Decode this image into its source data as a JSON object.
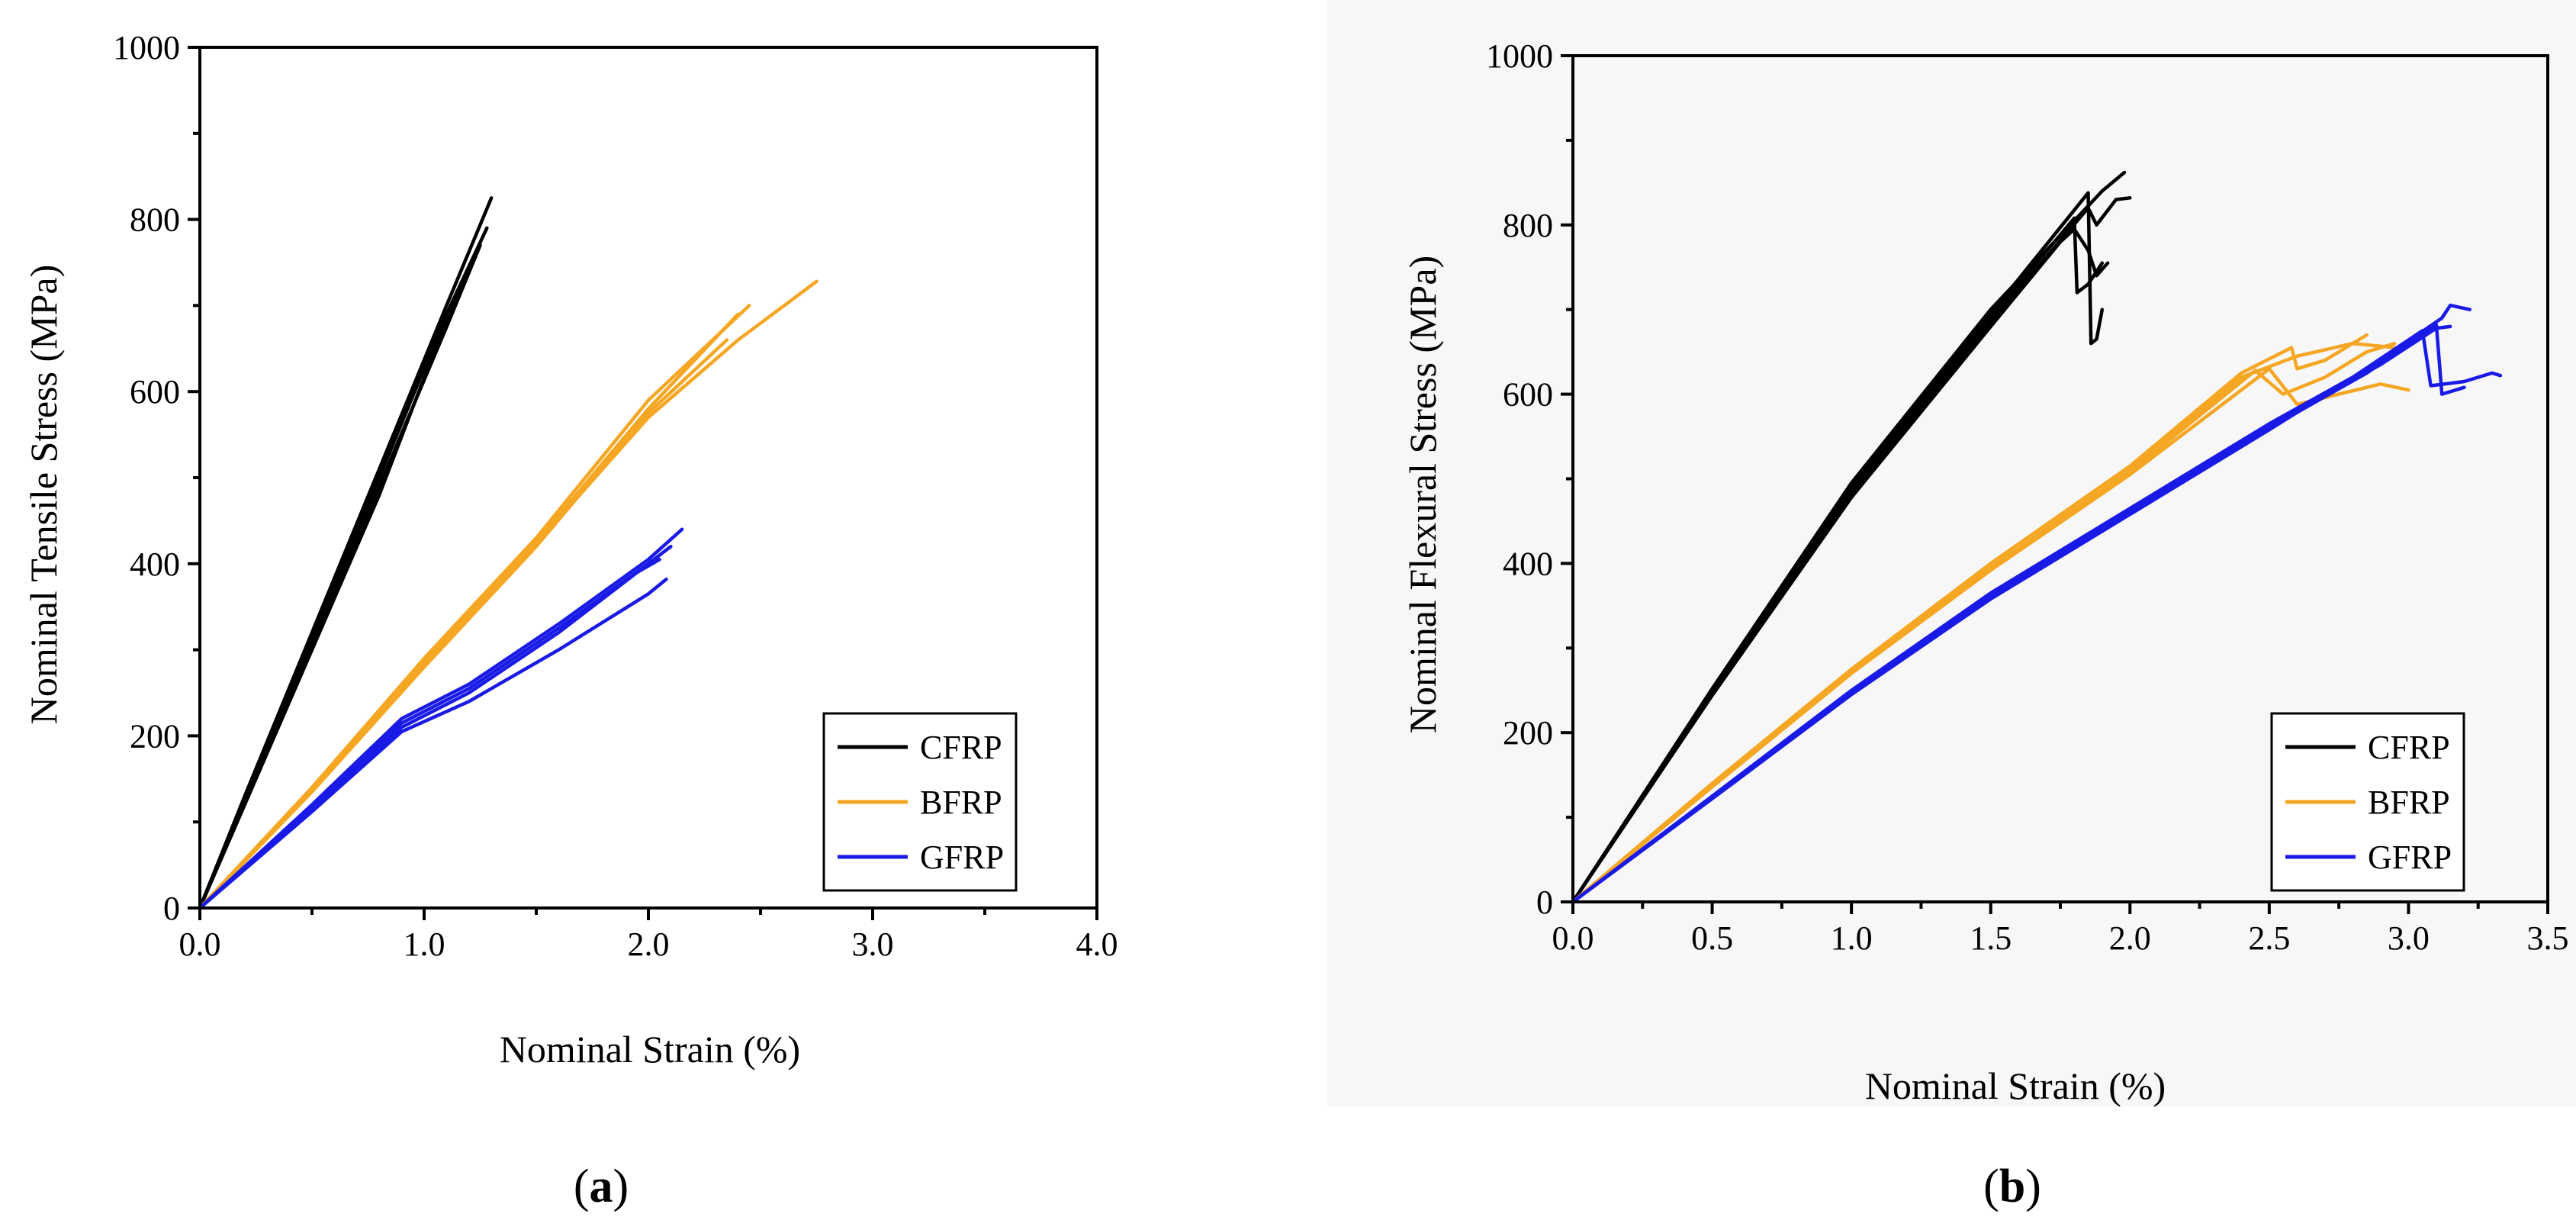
{
  "chart_data": [
    {
      "type": "line",
      "panel": "a",
      "caption": {
        "open": "(",
        "letter": "a",
        "close": ")"
      },
      "xlabel": "Nominal Strain (%)",
      "ylabel": "Nominal Tensile Stress (MPa)",
      "xlim": [
        0,
        4.0
      ],
      "ylim": [
        0,
        1000
      ],
      "xticks": [
        0,
        1.0,
        2.0,
        3.0,
        4.0
      ],
      "xticklabels": [
        "0.0",
        "1.0",
        "2.0",
        "3.0",
        "4.0"
      ],
      "yticks": [
        0,
        200,
        400,
        600,
        800,
        1000
      ],
      "yticklabels": [
        "0",
        "200",
        "400",
        "600",
        "800",
        "1000"
      ],
      "legend_position": "lower-right",
      "series": [
        {
          "name": "CFRP",
          "color": "#000000",
          "curves": [
            [
              [
                0,
                0
              ],
              [
                0.2,
                130
              ],
              [
                0.5,
                320
              ],
              [
                0.8,
                510
              ],
              [
                1.1,
                700
              ],
              [
                1.3,
                825
              ]
            ],
            [
              [
                0,
                0
              ],
              [
                0.2,
                125
              ],
              [
                0.5,
                315
              ],
              [
                0.8,
                500
              ],
              [
                1.1,
                690
              ],
              [
                1.28,
                790
              ]
            ],
            [
              [
                0,
                0
              ],
              [
                0.2,
                122
              ],
              [
                0.5,
                308
              ],
              [
                0.8,
                490
              ],
              [
                1.1,
                675
              ],
              [
                1.25,
                770
              ]
            ],
            [
              [
                0,
                0
              ],
              [
                0.2,
                120
              ],
              [
                0.5,
                300
              ],
              [
                0.8,
                480
              ],
              [
                1.05,
                650
              ],
              [
                1.22,
                752
              ]
            ]
          ]
        },
        {
          "name": "BFRP",
          "color": "#F5A623",
          "curves": [
            [
              [
                0,
                0
              ],
              [
                0.5,
                140
              ],
              [
                1.0,
                290
              ],
              [
                1.5,
                430
              ],
              [
                2.0,
                590
              ],
              [
                2.45,
                700
              ]
            ],
            [
              [
                0,
                0
              ],
              [
                0.5,
                138
              ],
              [
                1.0,
                285
              ],
              [
                1.5,
                425
              ],
              [
                2.0,
                580
              ],
              [
                2.4,
                690
              ]
            ],
            [
              [
                0,
                0
              ],
              [
                0.5,
                135
              ],
              [
                1.0,
                280
              ],
              [
                1.5,
                420
              ],
              [
                2.0,
                575
              ],
              [
                2.35,
                660
              ]
            ],
            [
              [
                0,
                0
              ],
              [
                0.5,
                137
              ],
              [
                1.0,
                283
              ],
              [
                1.5,
                423
              ],
              [
                2.0,
                570
              ],
              [
                2.4,
                660
              ],
              [
                2.75,
                728
              ]
            ]
          ]
        },
        {
          "name": "GFRP",
          "color": "#1A1AE6",
          "curves": [
            [
              [
                0,
                0
              ],
              [
                0.5,
                120
              ],
              [
                0.9,
                220
              ],
              [
                1.2,
                260
              ],
              [
                1.6,
                330
              ],
              [
                2.0,
                405
              ],
              [
                2.15,
                440
              ]
            ],
            [
              [
                0,
                0
              ],
              [
                0.5,
                118
              ],
              [
                0.9,
                215
              ],
              [
                1.2,
                255
              ],
              [
                1.6,
                325
              ],
              [
                2.0,
                400
              ],
              [
                2.1,
                420
              ]
            ],
            [
              [
                0,
                0
              ],
              [
                0.5,
                115
              ],
              [
                0.9,
                210
              ],
              [
                1.2,
                250
              ],
              [
                1.6,
                320
              ],
              [
                1.95,
                390
              ],
              [
                2.05,
                405
              ]
            ],
            [
              [
                0,
                0
              ],
              [
                0.5,
                112
              ],
              [
                0.9,
                205
              ],
              [
                1.2,
                240
              ],
              [
                1.6,
                300
              ],
              [
                2.0,
                365
              ],
              [
                2.08,
                382
              ]
            ]
          ]
        }
      ]
    },
    {
      "type": "line",
      "panel": "b",
      "caption": {
        "open": "(",
        "letter": "b",
        "close": ")"
      },
      "xlabel": "Nominal Strain (%)",
      "ylabel": "Nominal Flexural Stress (MPa)",
      "xlim": [
        0,
        3.5
      ],
      "ylim": [
        0,
        1000
      ],
      "xticks": [
        0,
        0.5,
        1.0,
        1.5,
        2.0,
        2.5,
        3.0,
        3.5
      ],
      "xticklabels": [
        "0.0",
        "0.5",
        "1.0",
        "1.5",
        "2.0",
        "2.5",
        "3.0",
        "3.5"
      ],
      "yticks": [
        0,
        200,
        400,
        600,
        800,
        1000
      ],
      "yticklabels": [
        "0",
        "200",
        "400",
        "600",
        "800",
        "1000"
      ],
      "legend_position": "lower-right",
      "series": [
        {
          "name": "CFRP",
          "color": "#000000",
          "curves": [
            [
              [
                0,
                0
              ],
              [
                0.5,
                250
              ],
              [
                1.0,
                490
              ],
              [
                1.5,
                695
              ],
              [
                1.85,
                838
              ],
              [
                1.86,
                660
              ],
              [
                1.88,
                665
              ],
              [
                1.9,
                700
              ]
            ],
            [
              [
                0,
                0
              ],
              [
                0.5,
                248
              ],
              [
                1.0,
                485
              ],
              [
                1.5,
                690
              ],
              [
                1.8,
                808
              ],
              [
                1.81,
                720
              ],
              [
                1.85,
                730
              ],
              [
                1.9,
                755
              ]
            ],
            [
              [
                0,
                0
              ],
              [
                0.5,
                246
              ],
              [
                1.0,
                480
              ],
              [
                1.5,
                685
              ],
              [
                1.85,
                820
              ],
              [
                1.88,
                800
              ],
              [
                1.95,
                830
              ],
              [
                2.0,
                832
              ]
            ],
            [
              [
                0,
                0
              ],
              [
                0.5,
                252
              ],
              [
                1.0,
                495
              ],
              [
                1.5,
                700
              ],
              [
                1.9,
                840
              ],
              [
                1.98,
                862
              ]
            ],
            [
              [
                0,
                0
              ],
              [
                0.5,
                244
              ],
              [
                1.0,
                478
              ],
              [
                1.5,
                680
              ],
              [
                1.75,
                780
              ],
              [
                1.8,
                795
              ],
              [
                1.85,
                770
              ],
              [
                1.88,
                740
              ],
              [
                1.92,
                755
              ]
            ]
          ]
        },
        {
          "name": "BFRP",
          "color": "#F5A623",
          "curves": [
            [
              [
                0,
                0
              ],
              [
                0.5,
                140
              ],
              [
                1.0,
                275
              ],
              [
                1.5,
                400
              ],
              [
                2.0,
                515
              ],
              [
                2.4,
                625
              ],
              [
                2.58,
                655
              ],
              [
                2.6,
                630
              ],
              [
                2.7,
                640
              ],
              [
                2.85,
                670
              ]
            ],
            [
              [
                0,
                0
              ],
              [
                0.5,
                138
              ],
              [
                1.0,
                272
              ],
              [
                1.5,
                395
              ],
              [
                2.0,
                510
              ],
              [
                2.4,
                620
              ],
              [
                2.6,
                645
              ],
              [
                2.8,
                660
              ],
              [
                2.95,
                655
              ]
            ],
            [
              [
                0,
                0
              ],
              [
                0.5,
                136
              ],
              [
                1.0,
                270
              ],
              [
                1.5,
                392
              ],
              [
                2.0,
                505
              ],
              [
                2.5,
                630
              ],
              [
                2.6,
                588
              ],
              [
                2.75,
                600
              ],
              [
                2.9,
                612
              ],
              [
                3.0,
                605
              ]
            ],
            [
              [
                0,
                0
              ],
              [
                0.5,
                137
              ],
              [
                1.0,
                271
              ],
              [
                1.5,
                393
              ],
              [
                2.0,
                508
              ],
              [
                2.45,
                628
              ],
              [
                2.55,
                600
              ],
              [
                2.7,
                620
              ],
              [
                2.85,
                650
              ],
              [
                2.95,
                660
              ]
            ]
          ]
        },
        {
          "name": "GFRP",
          "color": "#1A1AE6",
          "curves": [
            [
              [
                0,
                0
              ],
              [
                0.5,
                125
              ],
              [
                1.0,
                250
              ],
              [
                1.5,
                365
              ],
              [
                2.0,
                465
              ],
              [
                2.5,
                565
              ],
              [
                2.8,
                620
              ],
              [
                3.05,
                675
              ],
              [
                3.08,
                610
              ],
              [
                3.2,
                615
              ],
              [
                3.3,
                625
              ],
              [
                3.33,
                622
              ]
            ],
            [
              [
                0,
                0
              ],
              [
                0.5,
                123
              ],
              [
                1.0,
                247
              ],
              [
                1.5,
                360
              ],
              [
                2.0,
                460
              ],
              [
                2.5,
                560
              ],
              [
                2.85,
                625
              ],
              [
                3.1,
                682
              ],
              [
                3.12,
                600
              ],
              [
                3.2,
                608
              ]
            ],
            [
              [
                0,
                0
              ],
              [
                0.5,
                122
              ],
              [
                1.0,
                245
              ],
              [
                1.5,
                358
              ],
              [
                2.0,
                458
              ],
              [
                2.5,
                558
              ],
              [
                2.9,
                640
              ],
              [
                3.12,
                690
              ],
              [
                3.15,
                705
              ],
              [
                3.22,
                700
              ]
            ],
            [
              [
                0,
                0
              ],
              [
                0.5,
                124
              ],
              [
                1.0,
                248
              ],
              [
                1.5,
                362
              ],
              [
                2.0,
                462
              ],
              [
                2.5,
                562
              ],
              [
                2.9,
                635
              ],
              [
                3.1,
                678
              ],
              [
                3.15,
                680
              ]
            ]
          ]
        }
      ]
    }
  ]
}
